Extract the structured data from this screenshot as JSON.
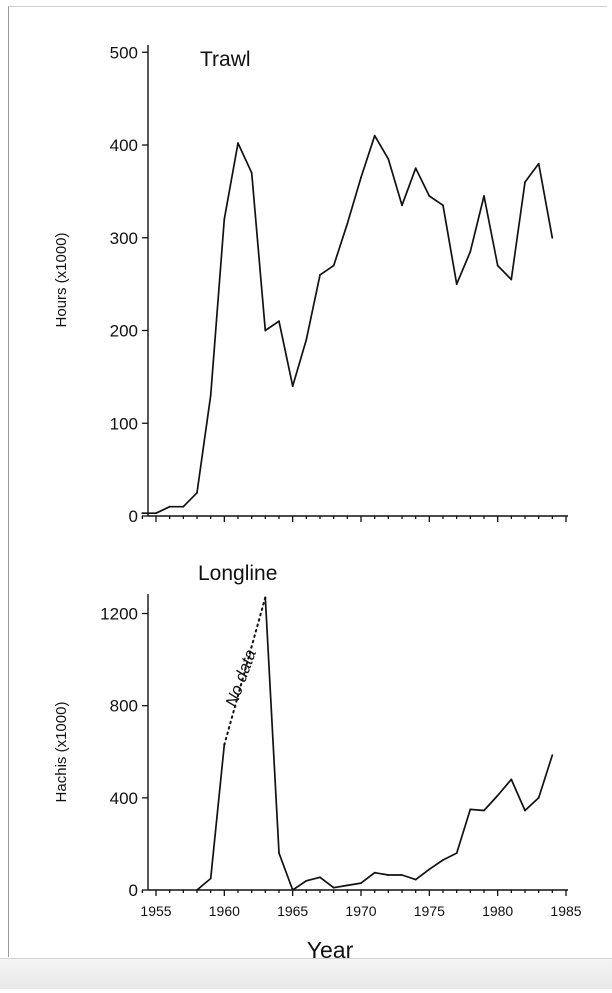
{
  "chart_data": [
    {
      "type": "line",
      "title": "Trawl",
      "ylabel": "Hours (x1000)",
      "xlabel": "",
      "xlim": [
        1953,
        1985
      ],
      "ylim": [
        0,
        500
      ],
      "yticks": [
        0,
        100,
        200,
        300,
        400,
        500
      ],
      "grid": false,
      "series": [
        {
          "x": [
            1954,
            1955,
            1956,
            1957,
            1958,
            1959,
            1960,
            1961,
            1962,
            1963,
            1964,
            1965,
            1966,
            1967,
            1968,
            1969,
            1970,
            1971,
            1972,
            1973,
            1974,
            1975,
            1976,
            1977,
            1978,
            1979,
            1980,
            1981,
            1982,
            1983,
            1984
          ],
          "values": [
            3,
            3,
            10,
            10,
            25,
            130,
            320,
            402,
            370,
            200,
            210,
            140,
            190,
            260,
            270,
            315,
            365,
            410,
            385,
            335,
            375,
            345,
            335,
            250,
            285,
            345,
            270,
            255,
            360,
            380,
            300
          ]
        }
      ]
    },
    {
      "type": "line",
      "title": "Longline",
      "ylabel": "Hachis (x1000)",
      "xlabel": "Year",
      "xlim": [
        1953,
        1985
      ],
      "ylim": [
        0,
        1300
      ],
      "yticks": [
        0,
        400,
        800,
        1200
      ],
      "xticks": [
        1955,
        1960,
        1965,
        1970,
        1975,
        1980,
        1985
      ],
      "grid": false,
      "annotation": "No data",
      "series": [
        {
          "x": [
            1958,
            1959,
            1960
          ],
          "values": [
            0,
            50,
            630
          ]
        },
        {
          "style": "dotted",
          "x": [
            1960,
            1963
          ],
          "values": [
            630,
            1270
          ]
        },
        {
          "x": [
            1963,
            1964,
            1965,
            1966,
            1967,
            1968,
            1969,
            1970,
            1971,
            1972,
            1973,
            1974,
            1975,
            1976,
            1977,
            1978,
            1979,
            1980,
            1981,
            1982,
            1983,
            1984
          ],
          "values": [
            1270,
            160,
            0,
            40,
            55,
            10,
            20,
            30,
            75,
            65,
            65,
            45,
            90,
            130,
            160,
            350,
            345,
            410,
            480,
            345,
            400,
            585
          ]
        }
      ]
    }
  ]
}
